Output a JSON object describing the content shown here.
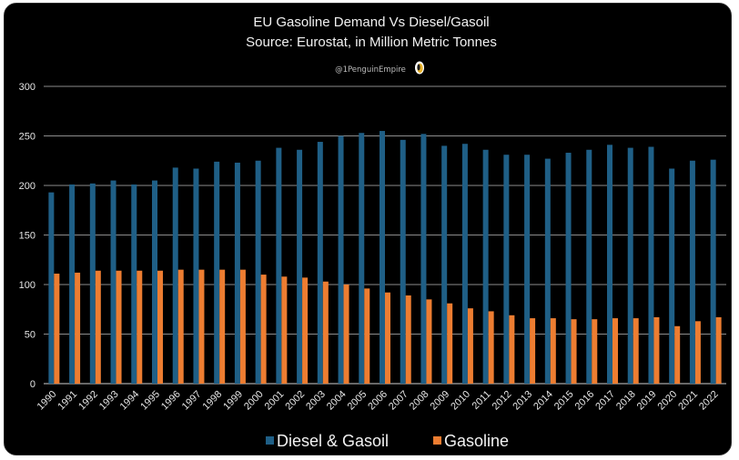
{
  "chart_data": {
    "type": "bar",
    "title": "EU Gasoline Demand Vs Diesel/Gasoil",
    "subtitle": "Source: Eurostat, in Million Metric Tonnes",
    "credit": "@1PenguinEmpire",
    "xlabel": "",
    "ylabel": "",
    "ylim": [
      0,
      300
    ],
    "yticks": [
      0,
      50,
      100,
      150,
      200,
      250,
      300
    ],
    "grid": true,
    "legend_position": "bottom",
    "categories": [
      "1990",
      "1991",
      "1992",
      "1993",
      "1994",
      "1995",
      "1996",
      "1997",
      "1998",
      "1999",
      "2000",
      "2001",
      "2002",
      "2003",
      "2004",
      "2005",
      "2006",
      "2007",
      "2008",
      "2009",
      "2010",
      "2011",
      "2012",
      "2013",
      "2014",
      "2015",
      "2016",
      "2017",
      "2018",
      "2019",
      "2020",
      "2021",
      "2022"
    ],
    "series": [
      {
        "name": "Diesel & Gasoil",
        "color": "#1f5f86",
        "values": [
          193,
          201,
          202,
          205,
          201,
          205,
          218,
          217,
          224,
          223,
          225,
          238,
          236,
          244,
          250,
          253,
          255,
          246,
          252,
          240,
          242,
          236,
          231,
          231,
          227,
          233,
          236,
          241,
          238,
          239,
          217,
          225,
          226
        ]
      },
      {
        "name": "Gasoline",
        "color": "#ed7d31",
        "values": [
          111,
          112,
          114,
          114,
          114,
          114,
          115,
          115,
          115,
          115,
          110,
          108,
          107,
          103,
          100,
          96,
          92,
          89,
          85,
          81,
          76,
          73,
          69,
          66,
          66,
          65,
          65,
          66,
          66,
          67,
          58,
          63,
          67
        ]
      }
    ]
  }
}
